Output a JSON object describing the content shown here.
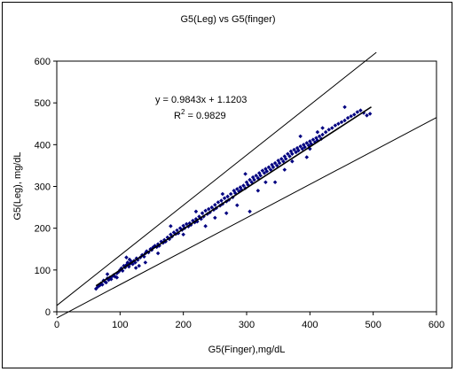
{
  "chart_data": {
    "type": "scatter",
    "title": "G5(Leg) vs G5(finger)",
    "xlabel": "G5(Finger),mg/dL",
    "ylabel": "G5(Leg), mg/dL",
    "xlim": [
      0,
      600
    ],
    "ylim": [
      0,
      600
    ],
    "xticks": [
      "0",
      "100",
      "200",
      "300",
      "400",
      "500",
      "600"
    ],
    "yticks": [
      "0",
      "100",
      "200",
      "300",
      "400",
      "500",
      "600"
    ],
    "grid": false,
    "legend": "none",
    "annotation": {
      "equation": "y = 0.9843x + 1.1203",
      "r2_prefix": "R",
      "r2_exp": "2",
      "r2_value": " = 0.9829"
    },
    "trendline": {
      "slope": 0.9843,
      "intercept": 1.1203,
      "x_range": [
        62,
        497
      ]
    },
    "reference_lines": [
      {
        "slope": 1.2,
        "intercept": 15,
        "x_range": [
          0,
          505
        ]
      },
      {
        "slope": 0.8,
        "intercept": -15,
        "x_range": [
          0,
          600
        ]
      }
    ],
    "colors": {
      "points": "#000080",
      "lines": "#000000"
    },
    "points": [
      [
        62,
        55
      ],
      [
        65,
        60
      ],
      [
        68,
        63
      ],
      [
        70,
        68
      ],
      [
        72,
        65
      ],
      [
        74,
        75
      ],
      [
        76,
        72
      ],
      [
        78,
        70
      ],
      [
        80,
        80
      ],
      [
        82,
        76
      ],
      [
        84,
        82
      ],
      [
        86,
        78
      ],
      [
        88,
        85
      ],
      [
        90,
        88
      ],
      [
        92,
        84
      ],
      [
        95,
        92
      ],
      [
        98,
        96
      ],
      [
        100,
        100
      ],
      [
        102,
        104
      ],
      [
        104,
        98
      ],
      [
        106,
        110
      ],
      [
        108,
        106
      ],
      [
        110,
        112
      ],
      [
        112,
        118
      ],
      [
        114,
        108
      ],
      [
        115,
        125
      ],
      [
        116,
        115
      ],
      [
        118,
        120
      ],
      [
        120,
        114
      ],
      [
        122,
        122
      ],
      [
        124,
        118
      ],
      [
        126,
        128
      ],
      [
        128,
        124
      ],
      [
        130,
        110
      ],
      [
        132,
        130
      ],
      [
        135,
        136
      ],
      [
        138,
        132
      ],
      [
        140,
        140
      ],
      [
        142,
        145
      ],
      [
        145,
        142
      ],
      [
        148,
        150
      ],
      [
        150,
        148
      ],
      [
        152,
        154
      ],
      [
        155,
        158
      ],
      [
        158,
        155
      ],
      [
        160,
        162
      ],
      [
        162,
        158
      ],
      [
        165,
        168
      ],
      [
        168,
        165
      ],
      [
        170,
        172
      ],
      [
        172,
        168
      ],
      [
        175,
        178
      ],
      [
        178,
        174
      ],
      [
        180,
        185
      ],
      [
        182,
        180
      ],
      [
        185,
        190
      ],
      [
        188,
        186
      ],
      [
        190,
        195
      ],
      [
        192,
        188
      ],
      [
        195,
        200
      ],
      [
        198,
        196
      ],
      [
        200,
        206
      ],
      [
        202,
        200
      ],
      [
        205,
        210
      ],
      [
        208,
        204
      ],
      [
        210,
        212
      ],
      [
        212,
        208
      ],
      [
        215,
        218
      ],
      [
        218,
        214
      ],
      [
        220,
        222
      ],
      [
        222,
        216
      ],
      [
        225,
        228
      ],
      [
        228,
        222
      ],
      [
        230,
        236
      ],
      [
        232,
        228
      ],
      [
        235,
        242
      ],
      [
        238,
        234
      ],
      [
        240,
        246
      ],
      [
        242,
        238
      ],
      [
        245,
        250
      ],
      [
        248,
        244
      ],
      [
        250,
        256
      ],
      [
        252,
        248
      ],
      [
        255,
        262
      ],
      [
        258,
        254
      ],
      [
        260,
        266
      ],
      [
        262,
        258
      ],
      [
        265,
        272
      ],
      [
        268,
        264
      ],
      [
        270,
        276
      ],
      [
        272,
        268
      ],
      [
        275,
        282
      ],
      [
        278,
        274
      ],
      [
        280,
        290
      ],
      [
        282,
        284
      ],
      [
        285,
        294
      ],
      [
        288,
        288
      ],
      [
        290,
        298
      ],
      [
        292,
        292
      ],
      [
        295,
        302
      ],
      [
        298,
        296
      ],
      [
        300,
        310
      ],
      [
        302,
        304
      ],
      [
        305,
        316
      ],
      [
        308,
        310
      ],
      [
        310,
        322
      ],
      [
        312,
        316
      ],
      [
        315,
        326
      ],
      [
        318,
        320
      ],
      [
        320,
        332
      ],
      [
        322,
        326
      ],
      [
        325,
        338
      ],
      [
        328,
        332
      ],
      [
        330,
        342
      ],
      [
        332,
        336
      ],
      [
        335,
        346
      ],
      [
        338,
        340
      ],
      [
        340,
        352
      ],
      [
        342,
        346
      ],
      [
        345,
        356
      ],
      [
        348,
        350
      ],
      [
        350,
        362
      ],
      [
        352,
        356
      ],
      [
        355,
        366
      ],
      [
        358,
        360
      ],
      [
        360,
        372
      ],
      [
        362,
        366
      ],
      [
        365,
        378
      ],
      [
        368,
        372
      ],
      [
        370,
        384
      ],
      [
        372,
        378
      ],
      [
        375,
        388
      ],
      [
        378,
        382
      ],
      [
        380,
        392
      ],
      [
        382,
        386
      ],
      [
        385,
        396
      ],
      [
        388,
        390
      ],
      [
        390,
        400
      ],
      [
        392,
        394
      ],
      [
        395,
        404
      ],
      [
        398,
        398
      ],
      [
        400,
        408
      ],
      [
        402,
        402
      ],
      [
        405,
        412
      ],
      [
        408,
        406
      ],
      [
        410,
        416
      ],
      [
        412,
        410
      ],
      [
        415,
        420
      ],
      [
        418,
        414
      ],
      [
        420,
        424
      ],
      [
        425,
        430
      ],
      [
        430,
        436
      ],
      [
        435,
        440
      ],
      [
        440,
        446
      ],
      [
        445,
        450
      ],
      [
        450,
        454
      ],
      [
        455,
        458
      ],
      [
        460,
        464
      ],
      [
        465,
        468
      ],
      [
        470,
        472
      ],
      [
        475,
        478
      ],
      [
        480,
        482
      ],
      [
        485,
        476
      ],
      [
        490,
        470
      ],
      [
        495,
        474
      ],
      [
        80,
        90
      ],
      [
        95,
        82
      ],
      [
        110,
        130
      ],
      [
        125,
        105
      ],
      [
        140,
        118
      ],
      [
        160,
        140
      ],
      [
        180,
        205
      ],
      [
        200,
        185
      ],
      [
        220,
        240
      ],
      [
        235,
        205
      ],
      [
        250,
        225
      ],
      [
        262,
        282
      ],
      [
        268,
        236
      ],
      [
        285,
        255
      ],
      [
        298,
        330
      ],
      [
        305,
        240
      ],
      [
        318,
        290
      ],
      [
        330,
        310
      ],
      [
        345,
        310
      ],
      [
        360,
        340
      ],
      [
        372,
        360
      ],
      [
        385,
        420
      ],
      [
        395,
        370
      ],
      [
        400,
        390
      ],
      [
        412,
        430
      ],
      [
        420,
        440
      ],
      [
        455,
        490
      ]
    ]
  }
}
